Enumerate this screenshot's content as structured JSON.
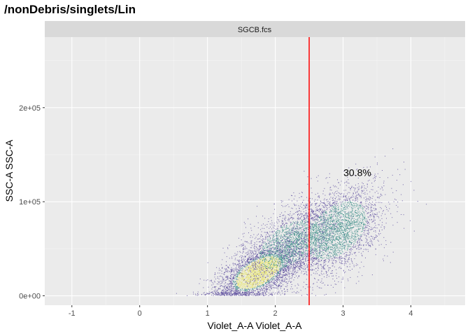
{
  "title": "/nonDebris/singlets/Lin",
  "chart_data": {
    "type": "scatter",
    "panel_label": "SGCB.fcs",
    "xlabel": "Violet_A-A Violet_A-A",
    "ylabel": "SSC-A SSC-A",
    "xlim": [
      -1.4,
      4.8
    ],
    "ylim": [
      -10000,
      275000
    ],
    "x_ticks": [
      -1,
      0,
      1,
      2,
      3,
      4
    ],
    "x_tick_labels": [
      "-1",
      "0",
      "1",
      "2",
      "3",
      "4"
    ],
    "y_ticks": [
      0,
      100000,
      200000
    ],
    "y_tick_labels": [
      "0e+00",
      "1e+05",
      "2e+05"
    ],
    "grid": true,
    "gate": {
      "type": "vertical-line",
      "x": 2.5,
      "color": "#ff0000"
    },
    "annotation": {
      "text": "30.8%",
      "x": 3.5,
      "y": 131000
    },
    "density_clusters": [
      {
        "name": "main",
        "cx": 1.75,
        "cy": 25000,
        "sx": 0.3,
        "sy": 13000,
        "n": 3600
      },
      {
        "name": "mid",
        "cx": 2.2,
        "cy": 55000,
        "sx": 0.35,
        "sy": 18000,
        "n": 2200
      },
      {
        "name": "upper",
        "cx": 2.9,
        "cy": 70000,
        "sx": 0.35,
        "sy": 22000,
        "n": 3000
      }
    ],
    "point_colors": {
      "low": "#5b4a9c",
      "mid": "#3f8f8a",
      "high": "#e8e57a"
    }
  }
}
